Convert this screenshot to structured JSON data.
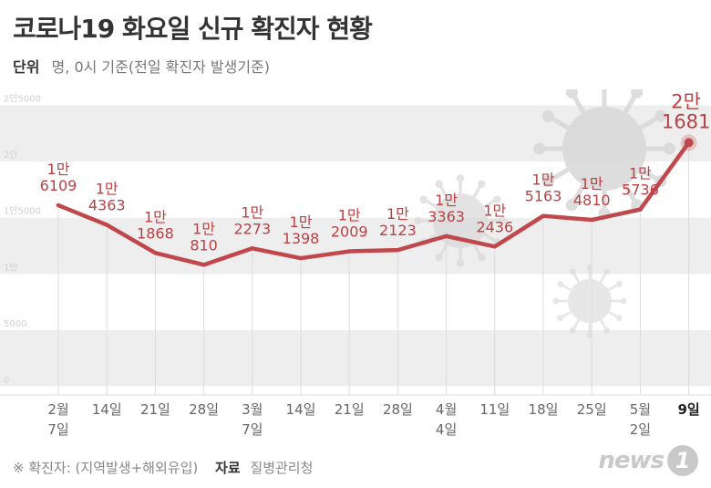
{
  "header": {
    "title": "코로나19 화요일 신규 확진자 현황",
    "unit_label": "단위",
    "unit_text": "명, 0시 기준(전일 확진자 발생기준)"
  },
  "footer": {
    "note": "※ 확진자: (지역발생+해외유입)",
    "source_label": "자료",
    "source": "질병관리청"
  },
  "logo": {
    "word": "news",
    "digit": "1"
  },
  "colors": {
    "line": "#c0474b",
    "label": "#b94145",
    "grid_band": "#eeeeee",
    "axis_text": "#d0d0d0"
  },
  "chart_data": {
    "type": "line",
    "title": "코로나19 화요일 신규 확진자 현황",
    "y_ticks": [
      "2만5000",
      "2만",
      "1만5000",
      "1만",
      "5000",
      "0"
    ],
    "ylim": [
      0,
      25000
    ],
    "x": [
      {
        "top": "2월",
        "bottom": "7일"
      },
      {
        "top": "14일",
        "bottom": ""
      },
      {
        "top": "21일",
        "bottom": ""
      },
      {
        "top": "28일",
        "bottom": ""
      },
      {
        "top": "3월",
        "bottom": "7일"
      },
      {
        "top": "14일",
        "bottom": ""
      },
      {
        "top": "21일",
        "bottom": ""
      },
      {
        "top": "28일",
        "bottom": ""
      },
      {
        "top": "4월",
        "bottom": "4일"
      },
      {
        "top": "11일",
        "bottom": ""
      },
      {
        "top": "18일",
        "bottom": ""
      },
      {
        "top": "25일",
        "bottom": ""
      },
      {
        "top": "5월",
        "bottom": "2일"
      },
      {
        "top": "9일",
        "bottom": ""
      }
    ],
    "values": [
      16109,
      14363,
      11868,
      10810,
      12273,
      11398,
      12009,
      12123,
      13363,
      12436,
      15163,
      14810,
      15736,
      21681
    ],
    "data_labels": [
      [
        "1만",
        "6109"
      ],
      [
        "1만",
        "4363"
      ],
      [
        "1만",
        "1868"
      ],
      [
        "1만",
        "810"
      ],
      [
        "1만",
        "2273"
      ],
      [
        "1만",
        "1398"
      ],
      [
        "1만",
        "2009"
      ],
      [
        "1만",
        "2123"
      ],
      [
        "1만",
        "3363"
      ],
      [
        "1만",
        "2436"
      ],
      [
        "1만",
        "5163"
      ],
      [
        "1만",
        "4810"
      ],
      [
        "1만",
        "5736"
      ],
      [
        "2만",
        "1681"
      ]
    ],
    "grid": true
  }
}
